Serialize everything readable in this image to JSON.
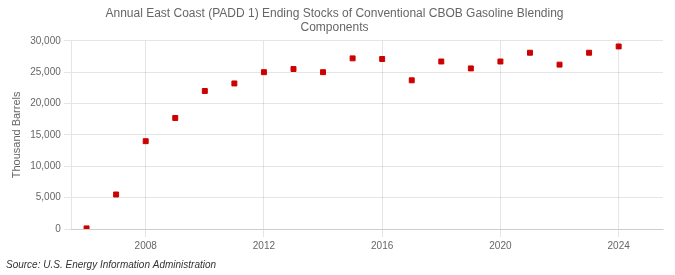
{
  "chart_data": {
    "type": "scatter",
    "title": "Annual East Coast (PADD 1) Ending Stocks of Conventional CBOB Gasoline Blending\nComponents",
    "ylabel": "Thousand Barrels",
    "annotations": [
      "Source: U.S. Energy Information Administration"
    ],
    "x": [
      2006,
      2007,
      2008,
      2009,
      2010,
      2011,
      2012,
      2013,
      2014,
      2015,
      2016,
      2017,
      2018,
      2019,
      2020,
      2021,
      2022,
      2023,
      2024
    ],
    "values": [
      100,
      5500,
      14000,
      17700,
      22000,
      23200,
      25000,
      25500,
      25000,
      27200,
      27100,
      23700,
      26700,
      25600,
      26700,
      28100,
      26200,
      28100,
      29100
    ],
    "color": "#cc0000",
    "marker": "square",
    "xlim": [
      2005.5,
      2025.5
    ],
    "xticks": [
      2008,
      2012,
      2016,
      2020,
      2024
    ],
    "ylim": [
      0,
      30000
    ],
    "yticks": [
      0,
      {
        "value": 5000,
        "label": "5,000"
      },
      {
        "value": 10000,
        "label": "10,000"
      },
      {
        "value": 15000,
        "label": "15,000"
      },
      {
        "value": 20000,
        "label": "20,000"
      },
      {
        "value": 25000,
        "label": "25,000"
      },
      {
        "value": 30000,
        "label": "30,000"
      }
    ],
    "grid": true
  }
}
